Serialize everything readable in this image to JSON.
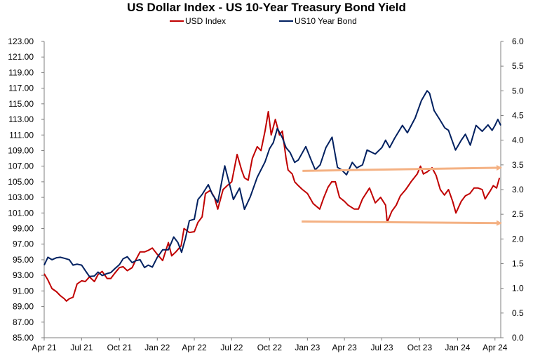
{
  "chart_data": {
    "type": "line",
    "title": "US Dollar Index - US 10-Year Treasury Bond Yield",
    "legend_position": "top-center",
    "grid": false,
    "x_range": [
      "2021-04-01",
      "2024-04-15"
    ],
    "x_tick_labels": [
      "Apr 21",
      "Jul 21",
      "Oct 21",
      "Jan 22",
      "Apr 22",
      "Jul 22",
      "Oct 22",
      "Jan 23",
      "Apr 23",
      "Jul 23",
      "Oct 23",
      "Jan 24",
      "Apr 24"
    ],
    "x_tick_dates": [
      "2021-04-01",
      "2021-07-01",
      "2021-10-01",
      "2022-01-01",
      "2022-04-01",
      "2022-07-01",
      "2022-10-01",
      "2023-01-01",
      "2023-04-01",
      "2023-07-01",
      "2023-10-01",
      "2024-01-01",
      "2024-04-01"
    ],
    "y_left": {
      "range": [
        85,
        123
      ],
      "tick_labels": [
        "85.00",
        "87.00",
        "89.00",
        "91.00",
        "93.00",
        "95.00",
        "97.00",
        "99.00",
        "101.00",
        "103.00",
        "105.00",
        "107.00",
        "109.00",
        "111.00",
        "113.00",
        "115.00",
        "117.00",
        "119.00",
        "121.00",
        "123.00"
      ]
    },
    "y_right": {
      "range": [
        0,
        6
      ],
      "tick_labels": [
        "0.0",
        "0.5",
        "1.0",
        "1.5",
        "2.0",
        "2.5",
        "3.0",
        "3.5",
        "4.0",
        "4.5",
        "5.0",
        "5.5",
        "6.0"
      ]
    },
    "series": [
      {
        "name": "USD Index",
        "axis": "left",
        "color": "#C00000",
        "points": [
          [
            "2021-04-01",
            93.2
          ],
          [
            "2021-04-10",
            92.4
          ],
          [
            "2021-04-20",
            91.3
          ],
          [
            "2021-05-01",
            90.9
          ],
          [
            "2021-05-10",
            90.4
          ],
          [
            "2021-05-20",
            90.0
          ],
          [
            "2021-05-25",
            89.7
          ],
          [
            "2021-06-01",
            90.0
          ],
          [
            "2021-06-10",
            90.2
          ],
          [
            "2021-06-20",
            91.9
          ],
          [
            "2021-07-01",
            92.3
          ],
          [
            "2021-07-10",
            92.2
          ],
          [
            "2021-07-20",
            92.8
          ],
          [
            "2021-08-01",
            92.2
          ],
          [
            "2021-08-10",
            93.1
          ],
          [
            "2021-08-20",
            93.5
          ],
          [
            "2021-09-01",
            92.6
          ],
          [
            "2021-09-10",
            92.6
          ],
          [
            "2021-09-20",
            93.3
          ],
          [
            "2021-10-01",
            94.0
          ],
          [
            "2021-10-10",
            94.1
          ],
          [
            "2021-10-20",
            93.6
          ],
          [
            "2021-11-01",
            94.0
          ],
          [
            "2021-11-10",
            95.0
          ],
          [
            "2021-11-20",
            96.0
          ],
          [
            "2021-12-01",
            96.0
          ],
          [
            "2021-12-10",
            96.2
          ],
          [
            "2021-12-20",
            96.5
          ],
          [
            "2022-01-01",
            95.7
          ],
          [
            "2022-01-14",
            94.9
          ],
          [
            "2022-01-28",
            97.2
          ],
          [
            "2022-02-05",
            95.5
          ],
          [
            "2022-02-15",
            96.0
          ],
          [
            "2022-02-28",
            96.8
          ],
          [
            "2022-03-07",
            99.0
          ],
          [
            "2022-03-20",
            98.5
          ],
          [
            "2022-04-01",
            98.6
          ],
          [
            "2022-04-10",
            99.8
          ],
          [
            "2022-04-20",
            100.5
          ],
          [
            "2022-04-28",
            103.5
          ],
          [
            "2022-05-10",
            103.9
          ],
          [
            "2022-05-20",
            103.0
          ],
          [
            "2022-05-28",
            101.5
          ],
          [
            "2022-06-10",
            104.0
          ],
          [
            "2022-06-20",
            104.5
          ],
          [
            "2022-07-01",
            105.0
          ],
          [
            "2022-07-14",
            108.5
          ],
          [
            "2022-07-25",
            106.5
          ],
          [
            "2022-08-01",
            105.5
          ],
          [
            "2022-08-10",
            105.2
          ],
          [
            "2022-08-20",
            108.0
          ],
          [
            "2022-09-01",
            109.5
          ],
          [
            "2022-09-10",
            109.0
          ],
          [
            "2022-09-20",
            111.5
          ],
          [
            "2022-09-28",
            114.0
          ],
          [
            "2022-10-05",
            111.0
          ],
          [
            "2022-10-15",
            113.0
          ],
          [
            "2022-10-25",
            111.0
          ],
          [
            "2022-11-01",
            111.5
          ],
          [
            "2022-11-10",
            108.0
          ],
          [
            "2022-11-15",
            106.5
          ],
          [
            "2022-11-25",
            106.0
          ],
          [
            "2022-12-01",
            105.0
          ],
          [
            "2022-12-10",
            104.5
          ],
          [
            "2022-12-20",
            104.0
          ],
          [
            "2023-01-01",
            103.5
          ],
          [
            "2023-01-15",
            102.2
          ],
          [
            "2023-01-31",
            101.5
          ],
          [
            "2023-02-10",
            103.0
          ],
          [
            "2023-02-20",
            104.3
          ],
          [
            "2023-03-01",
            105.0
          ],
          [
            "2023-03-10",
            105.0
          ],
          [
            "2023-03-20",
            103.0
          ],
          [
            "2023-04-01",
            102.5
          ],
          [
            "2023-04-10",
            102.0
          ],
          [
            "2023-04-25",
            101.5
          ],
          [
            "2023-05-05",
            101.5
          ],
          [
            "2023-05-15",
            102.8
          ],
          [
            "2023-06-01",
            104.2
          ],
          [
            "2023-06-15",
            102.3
          ],
          [
            "2023-06-28",
            103.0
          ],
          [
            "2023-07-10",
            102.0
          ],
          [
            "2023-07-14",
            99.8
          ],
          [
            "2023-07-25",
            101.2
          ],
          [
            "2023-08-05",
            102.0
          ],
          [
            "2023-08-15",
            103.2
          ],
          [
            "2023-08-28",
            104.0
          ],
          [
            "2023-09-10",
            105.0
          ],
          [
            "2023-09-25",
            106.0
          ],
          [
            "2023-10-03",
            107.0
          ],
          [
            "2023-10-10",
            106.0
          ],
          [
            "2023-10-20",
            106.3
          ],
          [
            "2023-10-31",
            106.8
          ],
          [
            "2023-11-10",
            105.8
          ],
          [
            "2023-11-20",
            104.0
          ],
          [
            "2023-11-30",
            103.3
          ],
          [
            "2023-12-10",
            104.0
          ],
          [
            "2023-12-20",
            102.5
          ],
          [
            "2023-12-28",
            101.0
          ],
          [
            "2024-01-10",
            102.5
          ],
          [
            "2024-01-20",
            103.2
          ],
          [
            "2024-01-31",
            103.5
          ],
          [
            "2024-02-10",
            104.2
          ],
          [
            "2024-02-20",
            104.2
          ],
          [
            "2024-03-01",
            104.0
          ],
          [
            "2024-03-08",
            102.8
          ],
          [
            "2024-03-20",
            103.8
          ],
          [
            "2024-03-28",
            104.5
          ],
          [
            "2024-04-05",
            104.2
          ],
          [
            "2024-04-12",
            105.5
          ]
        ]
      },
      {
        "name": "US10 Year Bond",
        "axis": "right",
        "color": "#002060",
        "points": [
          [
            "2021-04-01",
            1.47
          ],
          [
            "2021-04-10",
            1.63
          ],
          [
            "2021-04-20",
            1.58
          ],
          [
            "2021-05-01",
            1.62
          ],
          [
            "2021-05-10",
            1.63
          ],
          [
            "2021-05-20",
            1.61
          ],
          [
            "2021-06-01",
            1.58
          ],
          [
            "2021-06-10",
            1.47
          ],
          [
            "2021-06-20",
            1.49
          ],
          [
            "2021-07-01",
            1.47
          ],
          [
            "2021-07-10",
            1.36
          ],
          [
            "2021-07-20",
            1.24
          ],
          [
            "2021-08-01",
            1.25
          ],
          [
            "2021-08-10",
            1.33
          ],
          [
            "2021-08-20",
            1.26
          ],
          [
            "2021-09-01",
            1.3
          ],
          [
            "2021-09-10",
            1.32
          ],
          [
            "2021-09-20",
            1.4
          ],
          [
            "2021-10-01",
            1.48
          ],
          [
            "2021-10-10",
            1.6
          ],
          [
            "2021-10-20",
            1.64
          ],
          [
            "2021-11-01",
            1.52
          ],
          [
            "2021-11-10",
            1.56
          ],
          [
            "2021-11-20",
            1.58
          ],
          [
            "2021-12-01",
            1.42
          ],
          [
            "2021-12-10",
            1.47
          ],
          [
            "2021-12-20",
            1.43
          ],
          [
            "2022-01-01",
            1.63
          ],
          [
            "2022-01-14",
            1.78
          ],
          [
            "2022-01-28",
            1.78
          ],
          [
            "2022-02-10",
            2.04
          ],
          [
            "2022-02-20",
            1.93
          ],
          [
            "2022-03-01",
            1.73
          ],
          [
            "2022-03-10",
            2.0
          ],
          [
            "2022-03-20",
            2.37
          ],
          [
            "2022-04-01",
            2.4
          ],
          [
            "2022-04-10",
            2.8
          ],
          [
            "2022-04-20",
            2.9
          ],
          [
            "2022-05-05",
            3.1
          ],
          [
            "2022-05-15",
            2.9
          ],
          [
            "2022-05-28",
            2.74
          ],
          [
            "2022-06-14",
            3.48
          ],
          [
            "2022-06-25",
            3.13
          ],
          [
            "2022-07-05",
            2.8
          ],
          [
            "2022-07-20",
            3.03
          ],
          [
            "2022-08-01",
            2.6
          ],
          [
            "2022-08-15",
            2.85
          ],
          [
            "2022-09-01",
            3.25
          ],
          [
            "2022-09-20",
            3.56
          ],
          [
            "2022-10-01",
            3.83
          ],
          [
            "2022-10-10",
            3.95
          ],
          [
            "2022-10-20",
            4.24
          ],
          [
            "2022-11-01",
            4.05
          ],
          [
            "2022-11-10",
            3.85
          ],
          [
            "2022-11-20",
            3.75
          ],
          [
            "2022-12-01",
            3.55
          ],
          [
            "2022-12-10",
            3.6
          ],
          [
            "2022-12-28",
            3.87
          ],
          [
            "2023-01-10",
            3.6
          ],
          [
            "2023-01-20",
            3.4
          ],
          [
            "2023-02-01",
            3.5
          ],
          [
            "2023-02-15",
            3.85
          ],
          [
            "2023-03-02",
            4.06
          ],
          [
            "2023-03-15",
            3.45
          ],
          [
            "2023-03-25",
            3.4
          ],
          [
            "2023-04-06",
            3.3
          ],
          [
            "2023-04-20",
            3.55
          ],
          [
            "2023-05-01",
            3.44
          ],
          [
            "2023-05-15",
            3.5
          ],
          [
            "2023-05-26",
            3.8
          ],
          [
            "2023-06-15",
            3.72
          ],
          [
            "2023-07-01",
            3.85
          ],
          [
            "2023-07-10",
            4.0
          ],
          [
            "2023-07-20",
            3.85
          ],
          [
            "2023-08-01",
            4.04
          ],
          [
            "2023-08-20",
            4.3
          ],
          [
            "2023-09-01",
            4.15
          ],
          [
            "2023-09-20",
            4.45
          ],
          [
            "2023-10-05",
            4.8
          ],
          [
            "2023-10-19",
            5.0
          ],
          [
            "2023-10-25",
            4.95
          ],
          [
            "2023-11-05",
            4.6
          ],
          [
            "2023-11-20",
            4.4
          ],
          [
            "2023-12-01",
            4.25
          ],
          [
            "2023-12-10",
            4.2
          ],
          [
            "2023-12-27",
            3.8
          ],
          [
            "2024-01-10",
            4.0
          ],
          [
            "2024-01-20",
            4.12
          ],
          [
            "2024-02-01",
            3.9
          ],
          [
            "2024-02-15",
            4.3
          ],
          [
            "2024-03-01",
            4.18
          ],
          [
            "2024-03-15",
            4.31
          ],
          [
            "2024-03-25",
            4.2
          ],
          [
            "2024-04-01",
            4.3
          ],
          [
            "2024-04-08",
            4.42
          ],
          [
            "2024-04-15",
            4.3
          ]
        ]
      }
    ],
    "annotations": [
      {
        "type": "arrow",
        "color": "#F4B183",
        "axis": "left",
        "from": [
          "2022-12-20",
          106.4
        ],
        "to": [
          "2024-04-15",
          106.8
        ]
      },
      {
        "type": "arrow",
        "color": "#F4B183",
        "axis": "left",
        "from": [
          "2022-12-18",
          99.9
        ],
        "to": [
          "2024-04-15",
          99.7
        ]
      }
    ]
  }
}
